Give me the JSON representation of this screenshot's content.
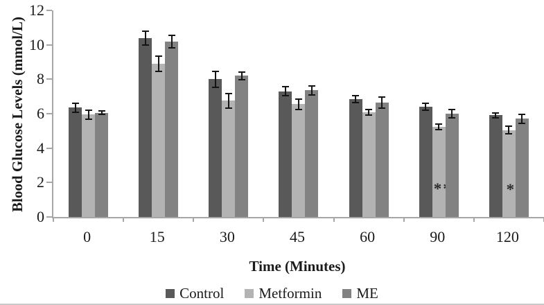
{
  "chart_data": {
    "type": "bar",
    "title": "",
    "xlabel": "Time (Minutes)",
    "ylabel": "Blood Glucose Levels (mmol/L)",
    "categories": [
      "0",
      "15",
      "30",
      "45",
      "60",
      "90",
      "120"
    ],
    "ylim": [
      0,
      12
    ],
    "yticks": [
      0,
      2,
      4,
      6,
      8,
      10,
      12
    ],
    "grid": false,
    "legend_position": "bottom",
    "axis_color": "#a6a6a6",
    "error_bar_color": "#141414",
    "series": [
      {
        "name": "Control",
        "color": "#595959",
        "values": [
          6.35,
          10.4,
          8.0,
          7.3,
          6.85,
          6.4,
          5.9
        ],
        "errors": [
          0.3,
          0.45,
          0.5,
          0.3,
          0.25,
          0.25,
          0.2
        ]
      },
      {
        "name": "Metformin",
        "color": "#b3b3b3",
        "values": [
          5.95,
          8.9,
          6.75,
          6.55,
          6.1,
          5.25,
          5.05
        ],
        "errors": [
          0.3,
          0.5,
          0.45,
          0.35,
          0.2,
          0.2,
          0.25
        ]
      },
      {
        "name": "ME",
        "color": "#828282",
        "values": [
          6.05,
          10.2,
          8.2,
          7.35,
          6.65,
          6.0,
          5.7
        ],
        "errors": [
          0.15,
          0.4,
          0.25,
          0.3,
          0.35,
          0.3,
          0.3
        ]
      }
    ],
    "annotations": [
      {
        "text": "**",
        "category": "90",
        "series": "Metformin",
        "y": 6.55
      },
      {
        "text": "*",
        "category": "120",
        "series": "Metformin",
        "y": 6.3
      }
    ]
  }
}
